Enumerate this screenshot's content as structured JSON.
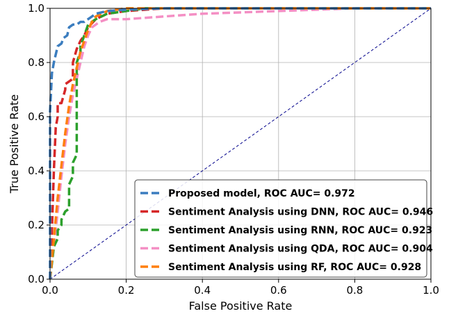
{
  "chart_data": {
    "type": "line",
    "title": "",
    "xlabel": "False Positive Rate",
    "ylabel": "True Positive Rate",
    "xlim": [
      0,
      1
    ],
    "ylim": [
      0,
      1
    ],
    "xticks": [
      "0.0",
      "0.2",
      "0.4",
      "0.6",
      "0.8",
      "1.0"
    ],
    "yticks": [
      "0.0",
      "0.2",
      "0.4",
      "0.6",
      "0.8",
      "1.0"
    ],
    "grid": true,
    "legend_position": "lower-right",
    "diagonal": {
      "x": [
        0,
        1
      ],
      "y": [
        0,
        1
      ],
      "color": "#00008b",
      "style": "dashed"
    },
    "series": [
      {
        "name": "Proposed model, ROC AUC= 0.972",
        "color": "#3b7dbf",
        "x": [
          0.0,
          0.0,
          0.005,
          0.01,
          0.02,
          0.03,
          0.035,
          0.045,
          0.05,
          0.06,
          0.07,
          0.08,
          0.09,
          0.1,
          0.12,
          0.15,
          0.2,
          0.3,
          0.5,
          0.7,
          1.0
        ],
        "y": [
          0.0,
          0.62,
          0.76,
          0.8,
          0.86,
          0.87,
          0.89,
          0.9,
          0.93,
          0.94,
          0.94,
          0.95,
          0.95,
          0.96,
          0.98,
          0.99,
          0.995,
          1.0,
          1.0,
          1.0,
          1.0
        ]
      },
      {
        "name": "Sentiment Analysis using DNN, ROC AUC= 0.946",
        "color": "#d62728",
        "x": [
          0.0,
          0.005,
          0.01,
          0.015,
          0.02,
          0.02,
          0.03,
          0.04,
          0.04,
          0.05,
          0.06,
          0.06,
          0.07,
          0.08,
          0.09,
          0.1,
          0.12,
          0.15,
          0.2,
          0.3,
          0.5,
          1.0
        ],
        "y": [
          0.0,
          0.18,
          0.4,
          0.56,
          0.6,
          0.65,
          0.65,
          0.7,
          0.72,
          0.73,
          0.74,
          0.8,
          0.85,
          0.88,
          0.9,
          0.93,
          0.96,
          0.98,
          0.99,
          1.0,
          1.0,
          1.0
        ]
      },
      {
        "name": "Sentiment Analysis using RNN, ROC AUC= 0.923",
        "color": "#2ca02c",
        "x": [
          0.0,
          0.01,
          0.02,
          0.02,
          0.03,
          0.03,
          0.04,
          0.05,
          0.05,
          0.06,
          0.06,
          0.07,
          0.07,
          0.08,
          0.08,
          0.09,
          0.1,
          0.12,
          0.15,
          0.2,
          0.25,
          0.5,
          1.0
        ],
        "y": [
          0.0,
          0.12,
          0.15,
          0.18,
          0.2,
          0.22,
          0.25,
          0.26,
          0.35,
          0.38,
          0.43,
          0.46,
          0.8,
          0.84,
          0.86,
          0.9,
          0.94,
          0.96,
          0.98,
          0.99,
          1.0,
          1.0,
          1.0
        ]
      },
      {
        "name": "Sentiment Analysis using QDA, ROC AUC= 0.904",
        "color": "#f48fc4",
        "x": [
          0.0,
          0.01,
          0.02,
          0.03,
          0.04,
          0.05,
          0.06,
          0.07,
          0.08,
          0.09,
          0.1,
          0.11,
          0.13,
          0.15,
          0.2,
          0.4,
          0.6,
          0.8,
          1.0
        ],
        "y": [
          0.0,
          0.12,
          0.25,
          0.38,
          0.5,
          0.6,
          0.68,
          0.74,
          0.8,
          0.86,
          0.9,
          0.93,
          0.95,
          0.96,
          0.96,
          0.98,
          0.99,
          1.0,
          1.0
        ]
      },
      {
        "name": "Sentiment Analysis using RF, ROC AUC= 0.928",
        "color": "#ff7f0e",
        "x": [
          0.0,
          0.01,
          0.02,
          0.03,
          0.04,
          0.05,
          0.06,
          0.07,
          0.08,
          0.09,
          0.1,
          0.11,
          0.12,
          0.15,
          0.2,
          0.3,
          0.5,
          0.8,
          1.0
        ],
        "y": [
          0.0,
          0.15,
          0.3,
          0.42,
          0.54,
          0.64,
          0.72,
          0.78,
          0.84,
          0.88,
          0.92,
          0.95,
          0.97,
          0.99,
          1.0,
          1.0,
          1.0,
          1.0,
          1.0
        ]
      }
    ]
  }
}
